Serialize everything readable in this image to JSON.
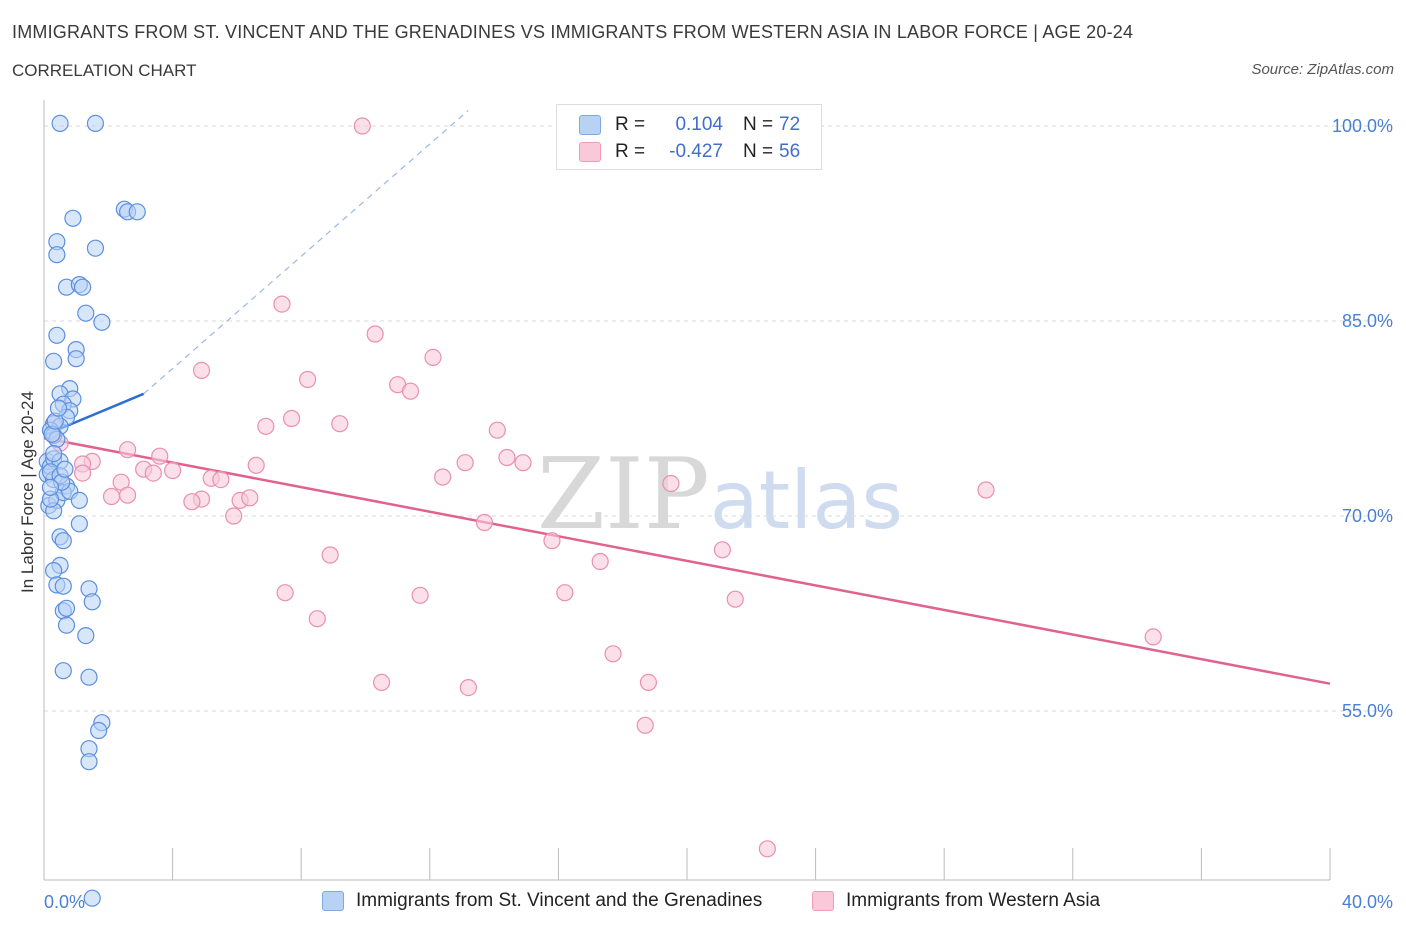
{
  "title": "IMMIGRANTS FROM ST. VINCENT AND THE GRENADINES VS IMMIGRANTS FROM WESTERN ASIA IN LABOR FORCE | AGE 20-24",
  "subtitle": "CORRELATION CHART",
  "source": "Source: ZipAtlas.com",
  "watermark": "ZIPatlas",
  "legend": {
    "series1": {
      "r_label": "R =",
      "r_value": "0.104",
      "n_label": "N =",
      "n_value": "72"
    },
    "series2": {
      "r_label": "R =",
      "r_value": "-0.427",
      "n_label": "N =",
      "n_value": "56"
    }
  },
  "colors": {
    "blue_fill": "#b8d2f6",
    "blue_stroke": "#5b8fe0",
    "blue_line": "#2f6fd0",
    "pink_fill": "#f9c9da",
    "pink_stroke": "#ea8fb0",
    "pink_line": "#e0628f",
    "grid": "#d8d8d8",
    "tick_text": "#4a7fd4"
  },
  "chart_data": {
    "type": "scatter",
    "title": "IMMIGRANTS FROM ST. VINCENT AND THE GRENADINES VS IMMIGRANTS FROM WESTERN ASIA IN LABOR FORCE | AGE 20-24",
    "xlabel": "",
    "ylabel": "In Labor Force | Age 20-24",
    "xlim": [
      0,
      40
    ],
    "ylim": [
      42,
      102
    ],
    "x_tick_labels": [
      "0.0%",
      "40.0%"
    ],
    "y_ticks": [
      55,
      70,
      85,
      100
    ],
    "y_tick_labels": [
      "55.0%",
      "70.0%",
      "85.0%",
      "100.0%"
    ],
    "grid": true,
    "legend_position": "top-center",
    "series": [
      {
        "name": "Immigrants from St. Vincent and the Grenadines",
        "color": "#5b8fe0",
        "points": [
          [
            0.5,
            100.2
          ],
          [
            1.6,
            100.2
          ],
          [
            0.1,
            73.2
          ],
          [
            0.1,
            74.2
          ],
          [
            0.2,
            73.8
          ],
          [
            0.3,
            72.8
          ],
          [
            0.15,
            70.8
          ],
          [
            0.4,
            71.2
          ],
          [
            0.3,
            70.4
          ],
          [
            0.5,
            68.4
          ],
          [
            0.6,
            68.1
          ],
          [
            0.5,
            66.2
          ],
          [
            0.3,
            65.8
          ],
          [
            0.4,
            64.7
          ],
          [
            0.6,
            64.6
          ],
          [
            1.4,
            64.4
          ],
          [
            1.5,
            63.4
          ],
          [
            0.6,
            62.7
          ],
          [
            0.7,
            62.9
          ],
          [
            0.7,
            61.6
          ],
          [
            1.3,
            60.8
          ],
          [
            0.6,
            58.1
          ],
          [
            1.4,
            57.6
          ],
          [
            1.8,
            54.1
          ],
          [
            1.7,
            53.5
          ],
          [
            1.4,
            52.1
          ],
          [
            1.4,
            51.1
          ],
          [
            1.5,
            40.6
          ],
          [
            2.5,
            93.6
          ],
          [
            2.6,
            93.4
          ],
          [
            2.9,
            93.4
          ],
          [
            0.9,
            92.9
          ],
          [
            0.4,
            91.1
          ],
          [
            0.4,
            90.1
          ],
          [
            1.6,
            90.6
          ],
          [
            0.7,
            87.6
          ],
          [
            1.1,
            87.8
          ],
          [
            1.2,
            87.6
          ],
          [
            1.3,
            85.6
          ],
          [
            1.8,
            84.9
          ],
          [
            0.4,
            83.9
          ],
          [
            1.0,
            82.8
          ],
          [
            0.3,
            81.9
          ],
          [
            1.0,
            82.1
          ],
          [
            0.8,
            79.8
          ],
          [
            0.5,
            79.4
          ],
          [
            0.9,
            79.0
          ],
          [
            0.6,
            78.6
          ],
          [
            0.8,
            78.1
          ],
          [
            0.7,
            77.6
          ],
          [
            0.3,
            77.1
          ],
          [
            0.5,
            76.9
          ],
          [
            0.2,
            76.6
          ],
          [
            0.3,
            76.2
          ],
          [
            0.4,
            75.9
          ],
          [
            0.3,
            74.4
          ],
          [
            0.5,
            74.2
          ],
          [
            0.2,
            73.4
          ],
          [
            0.7,
            72.3
          ],
          [
            0.6,
            71.8
          ],
          [
            0.8,
            71.9
          ],
          [
            1.1,
            71.2
          ],
          [
            1.1,
            69.4
          ],
          [
            0.2,
            71.3
          ],
          [
            0.5,
            73.1
          ],
          [
            0.3,
            74.8
          ],
          [
            0.25,
            76.3
          ],
          [
            0.35,
            77.3
          ],
          [
            0.45,
            78.3
          ],
          [
            0.55,
            72.6
          ],
          [
            0.65,
            73.6
          ],
          [
            0.2,
            72.2
          ]
        ],
        "trend": [
          [
            0.0,
            76.2
          ],
          [
            3.1,
            79.4
          ]
        ],
        "trend_dashed": [
          [
            3.1,
            79.4
          ],
          [
            13.2,
            101.2
          ]
        ]
      },
      {
        "name": "Immigrants from Western Asia",
        "color": "#ea8fb0",
        "points": [
          [
            9.9,
            100.0
          ],
          [
            7.4,
            86.3
          ],
          [
            10.3,
            84.0
          ],
          [
            12.1,
            82.2
          ],
          [
            4.9,
            81.2
          ],
          [
            8.2,
            80.5
          ],
          [
            11.0,
            80.1
          ],
          [
            11.4,
            79.6
          ],
          [
            7.7,
            77.5
          ],
          [
            6.9,
            76.9
          ],
          [
            9.2,
            77.1
          ],
          [
            14.1,
            76.6
          ],
          [
            0.3,
            77.1
          ],
          [
            0.5,
            75.6
          ],
          [
            2.6,
            75.1
          ],
          [
            3.6,
            74.6
          ],
          [
            1.5,
            74.2
          ],
          [
            1.2,
            74.0
          ],
          [
            14.4,
            74.5
          ],
          [
            13.1,
            74.1
          ],
          [
            14.9,
            74.1
          ],
          [
            3.1,
            73.6
          ],
          [
            3.4,
            73.3
          ],
          [
            4.0,
            73.5
          ],
          [
            6.6,
            73.9
          ],
          [
            5.2,
            72.9
          ],
          [
            5.5,
            72.8
          ],
          [
            12.4,
            73.0
          ],
          [
            2.4,
            72.6
          ],
          [
            19.5,
            72.5
          ],
          [
            29.3,
            72.0
          ],
          [
            2.6,
            71.6
          ],
          [
            2.1,
            71.5
          ],
          [
            4.9,
            71.3
          ],
          [
            4.6,
            71.1
          ],
          [
            6.1,
            71.2
          ],
          [
            6.4,
            71.4
          ],
          [
            5.9,
            70.0
          ],
          [
            13.7,
            69.5
          ],
          [
            15.8,
            68.1
          ],
          [
            21.1,
            67.4
          ],
          [
            8.9,
            67.0
          ],
          [
            17.3,
            66.5
          ],
          [
            7.5,
            64.1
          ],
          [
            11.7,
            63.9
          ],
          [
            16.2,
            64.1
          ],
          [
            21.5,
            63.6
          ],
          [
            8.5,
            62.1
          ],
          [
            34.5,
            60.7
          ],
          [
            17.7,
            59.4
          ],
          [
            10.5,
            57.2
          ],
          [
            13.2,
            56.8
          ],
          [
            18.8,
            57.2
          ],
          [
            18.7,
            53.9
          ],
          [
            22.5,
            44.4
          ],
          [
            1.2,
            73.3
          ]
        ],
        "trend": [
          [
            0.0,
            76.0
          ],
          [
            40.0,
            57.1
          ]
        ]
      }
    ]
  },
  "bottom_legend": {
    "series1": "Immigrants from St. Vincent and the Grenadines",
    "series2": "Immigrants from Western Asia"
  }
}
